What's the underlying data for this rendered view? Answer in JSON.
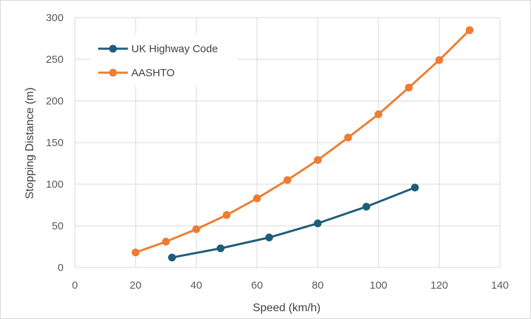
{
  "chart_data": {
    "type": "scatter",
    "title": "",
    "xlabel": "Speed (km/h)",
    "ylabel": "Stopping Distance (m)",
    "xlim": [
      0,
      140
    ],
    "ylim": [
      0,
      300
    ],
    "xticks": [
      0,
      20,
      40,
      60,
      80,
      100,
      120,
      140
    ],
    "yticks": [
      0,
      50,
      100,
      150,
      200,
      250,
      300
    ],
    "grid": true,
    "legend_position": "top-left",
    "series": [
      {
        "name": "UK Highway Code",
        "color": "#1f5c7a",
        "x": [
          32,
          48,
          64,
          80,
          96,
          112
        ],
        "y": [
          12,
          23,
          36,
          53,
          73,
          96
        ]
      },
      {
        "name": "AASHTO",
        "color": "#ed7d31",
        "x": [
          20,
          30,
          40,
          50,
          60,
          70,
          80,
          90,
          100,
          110,
          120,
          130
        ],
        "y": [
          18,
          31,
          46,
          63,
          83,
          105,
          129,
          156,
          184,
          216,
          249,
          285
        ]
      }
    ]
  }
}
